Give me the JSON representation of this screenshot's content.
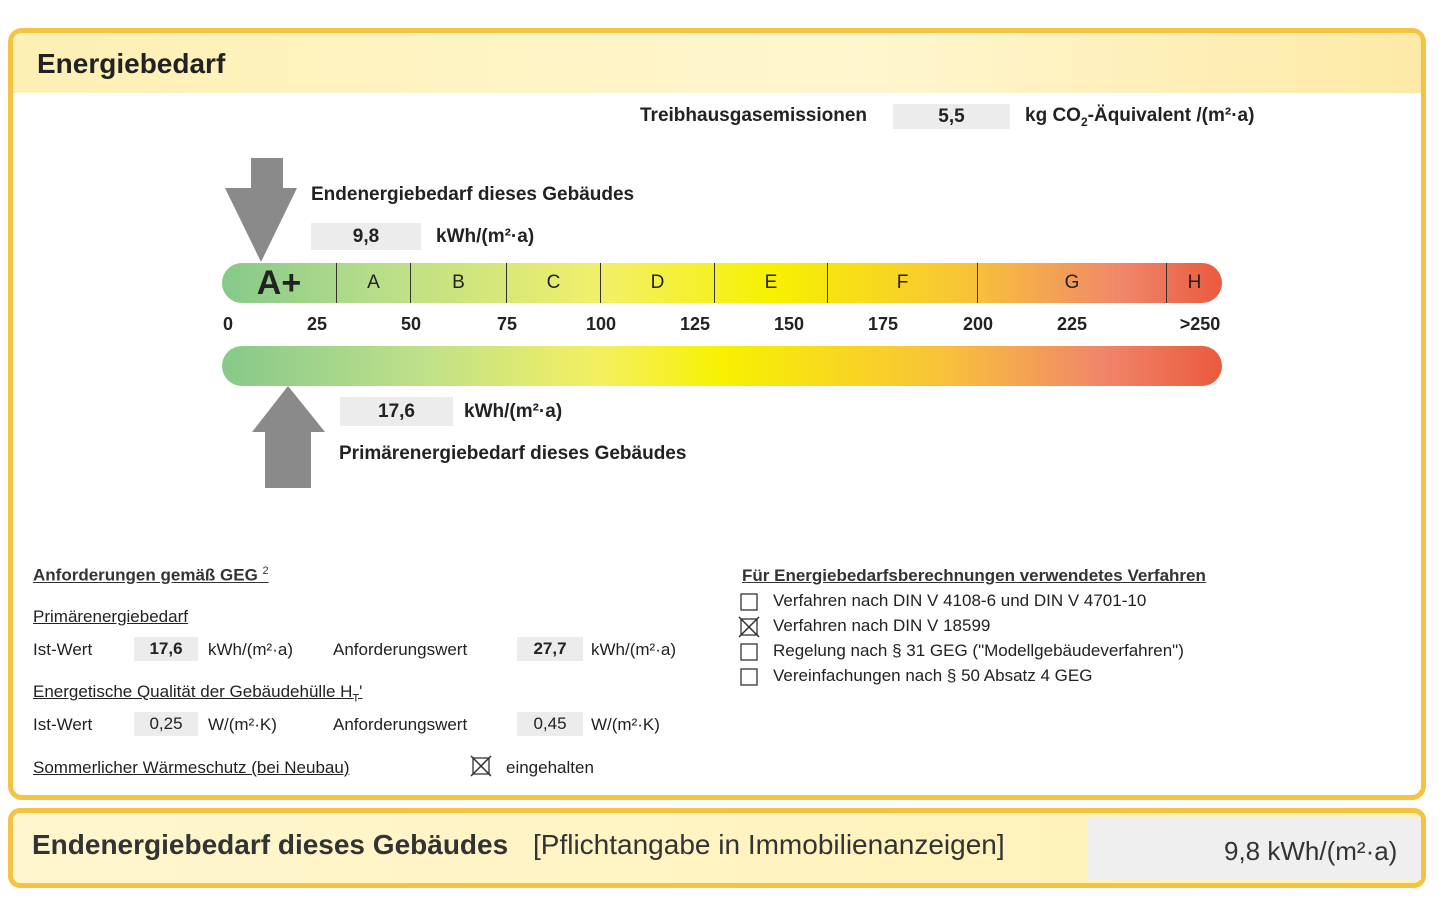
{
  "header": {
    "title": "Energiebedarf"
  },
  "emissions": {
    "label": "Treibhausgasemissionen",
    "value": "5,5",
    "unit": "kg CO",
    "unit_sub": "2",
    "unit_rest": "-Äquivalent /(m²·a)"
  },
  "final_energy": {
    "label": "Endenergiebedarf dieses Gebäudes",
    "value": "9,8",
    "unit": "kWh/(m²·a)"
  },
  "scale": {
    "classes": [
      "A+",
      "A",
      "B",
      "C",
      "D",
      "E",
      "F",
      "G",
      "H"
    ],
    "ticks": [
      "0",
      "25",
      "50",
      "75",
      "100",
      "125",
      "150",
      "175",
      "200",
      "225",
      ">250"
    ]
  },
  "primary_energy": {
    "label": "Primärenergiebedarf dieses Gebäudes",
    "value": "17,6",
    "unit": "kWh/(m²·a)"
  },
  "requirements": {
    "title": "Anforderungen gemäß GEG",
    "title_sup": "2",
    "primary": {
      "title": "Primärenergiebedarf",
      "actual_label": "Ist-Wert",
      "actual": "17,6",
      "actual_unit": "kWh/(m²·a)",
      "required_label": "Anforderungswert",
      "required": "27,7",
      "required_unit": "kWh/(m²·a)"
    },
    "envelope": {
      "title": "Energetische Qualität der Gebäudehülle H",
      "title_sub": "T",
      "title_end": "'",
      "actual_label": "Ist-Wert",
      "actual": "0,25",
      "actual_unit": "W/(m²·K)",
      "required_label": "Anforderungswert",
      "required": "0,45",
      "required_unit": "W/(m²·K)"
    },
    "summer": {
      "title": "Sommerlicher Wärmeschutz (bei Neubau)",
      "checked": true,
      "label": "eingehalten"
    }
  },
  "methods": {
    "title": "Für Energiebedarfsberechnungen verwendetes Verfahren",
    "options": [
      {
        "label": "Verfahren nach DIN V 4108-6 und DIN V 4701-10",
        "checked": false
      },
      {
        "label": "Verfahren nach DIN V 18599",
        "checked": true
      },
      {
        "label": "Regelung nach § 31 GEG (\"Modellgebäudeverfahren\")",
        "checked": false
      },
      {
        "label": "Vereinfachungen nach § 50 Absatz 4 GEG",
        "checked": false
      }
    ]
  },
  "footer": {
    "title": "Endenergiebedarf dieses Gebäudes",
    "note": "[Pflichtangabe in Immobilienanzeigen]",
    "value": "9,8 kWh/(m²·a)"
  }
}
